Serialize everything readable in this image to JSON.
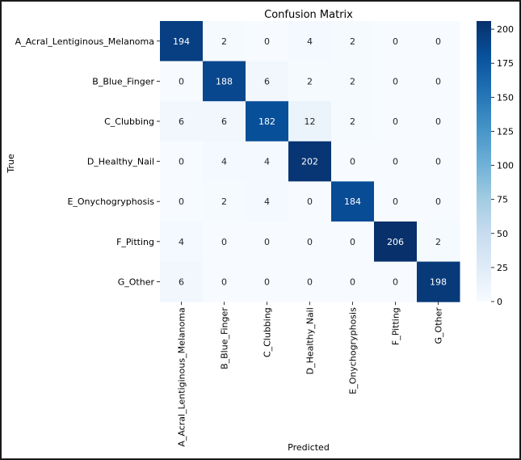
{
  "chart_data": {
    "type": "heatmap",
    "title": "Confusion Matrix",
    "xlabel": "Predicted",
    "ylabel": "True",
    "categories": [
      "A_Acral_Lentiginous_Melanoma",
      "B_Blue_Finger",
      "C_Clubbing",
      "D_Healthy_Nail",
      "E_Onychogryphosis",
      "F_Pitting",
      "G_Other"
    ],
    "matrix": [
      [
        194,
        2,
        0,
        4,
        2,
        0,
        0
      ],
      [
        0,
        188,
        6,
        2,
        2,
        0,
        0
      ],
      [
        6,
        6,
        182,
        12,
        2,
        0,
        0
      ],
      [
        0,
        4,
        4,
        202,
        0,
        0,
        0
      ],
      [
        0,
        2,
        4,
        0,
        184,
        0,
        0
      ],
      [
        4,
        0,
        0,
        0,
        0,
        206,
        2
      ],
      [
        6,
        0,
        0,
        0,
        0,
        0,
        198
      ]
    ],
    "colormap": "Blues",
    "vmin": 0,
    "vmax": 206,
    "colorbar_ticks": [
      0,
      25,
      50,
      75,
      100,
      125,
      150,
      175,
      200
    ]
  }
}
